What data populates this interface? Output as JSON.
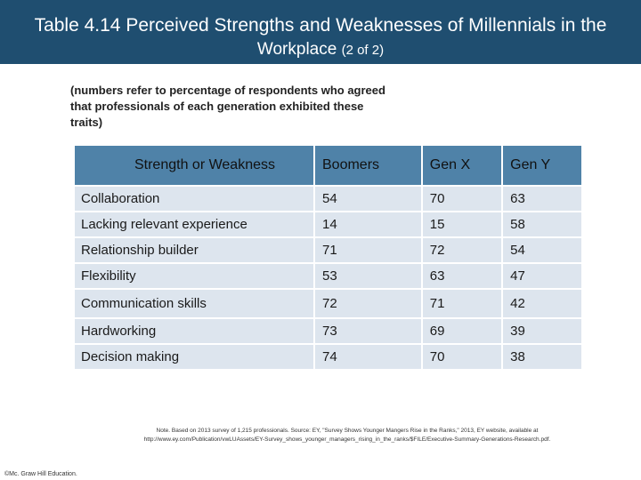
{
  "title": {
    "line1": "Table 4.14 Perceived Strengths and Weaknesses of Millennials in the",
    "line2_main": "Workplace",
    "line2_small": "(2 of 2)"
  },
  "subtitle": "(numbers refer to percentage of respondents who agreed that professionals of each generation exhibited these traits)",
  "table": {
    "headers": [
      "Strength or Weakness",
      "Boomers",
      "Gen X",
      "Gen Y"
    ],
    "rows": [
      {
        "trait": "Collaboration",
        "boomers": "54",
        "genx": "70",
        "geny": "63"
      },
      {
        "trait": "Lacking relevant experience",
        "boomers": "14",
        "genx": "15",
        "geny": "58"
      },
      {
        "trait": "Relationship builder",
        "boomers": "71",
        "genx": "72",
        "geny": "54"
      },
      {
        "trait": "Flexibility",
        "boomers": "53",
        "genx": "63",
        "geny": "47"
      },
      {
        "trait": "Communication skills",
        "boomers": "72",
        "genx": "71",
        "geny": "42"
      },
      {
        "trait": "Hardworking",
        "boomers": "73",
        "genx": "69",
        "geny": "39"
      },
      {
        "trait": "Decision making",
        "boomers": "74",
        "genx": "70",
        "geny": "38"
      }
    ]
  },
  "note": "Note. Based on 2013 survey of 1,215 professionals. Source: EY, \"Survey Shows Younger Mangers Rise in the Ranks,\" 2013, EY website, available at http://www.ey.com/Publication/vwLUAssets/EY-Survey_shows_younger_managers_rising_in_the_ranks/$FILE/Executive-Summary-Generations-Research.pdf.",
  "copyright": "©Mc. Graw Hill Education."
}
